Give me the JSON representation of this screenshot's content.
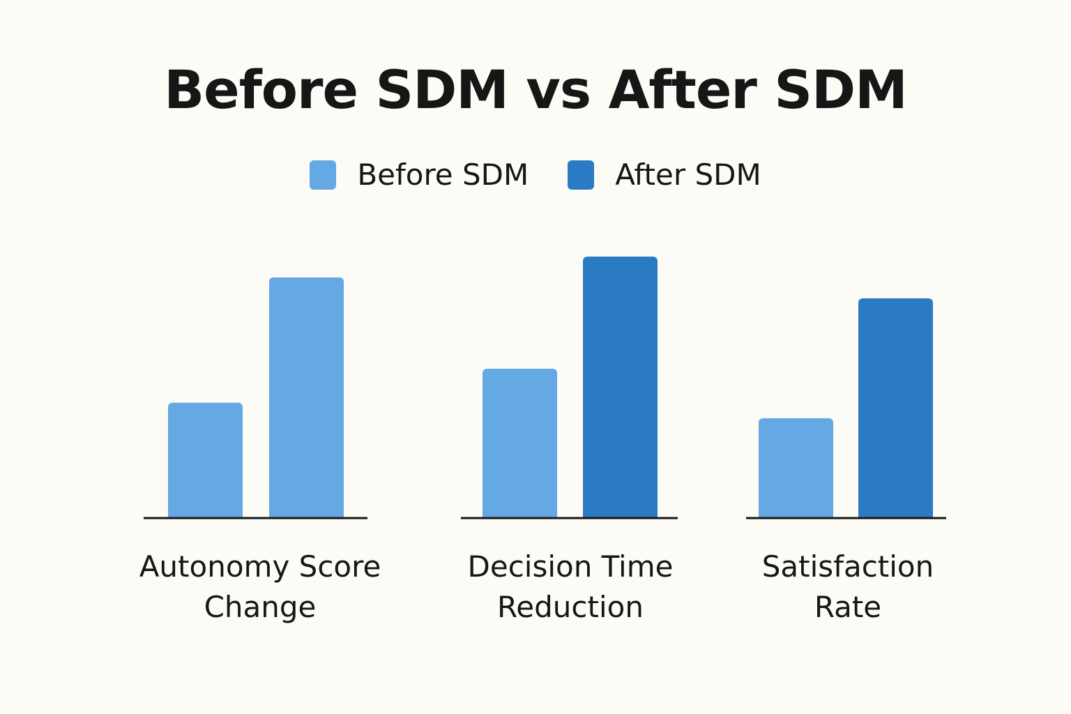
{
  "chart_data": {
    "type": "bar",
    "title": "Before SDM vs After SDM",
    "categories": [
      "Autonomy Score\nChange",
      "Decision Time\nReduction",
      "Satisfaction\nRate"
    ],
    "series": [
      {
        "name": "Before SDM",
        "color": "#64a8e4",
        "values": [
          44,
          57,
          38
        ]
      },
      {
        "name": "After SDM",
        "color": "#2a7bc4",
        "values": [
          92,
          100,
          84
        ]
      }
    ],
    "bar_colors": [
      [
        "#64a8e4",
        "#64a8e4"
      ],
      [
        "#64a8e4",
        "#2a7bc4"
      ],
      [
        "#64a8e4",
        "#2a7bc4"
      ]
    ],
    "ylim": [
      0,
      100
    ],
    "grid": false,
    "legend_position": "top-center"
  }
}
